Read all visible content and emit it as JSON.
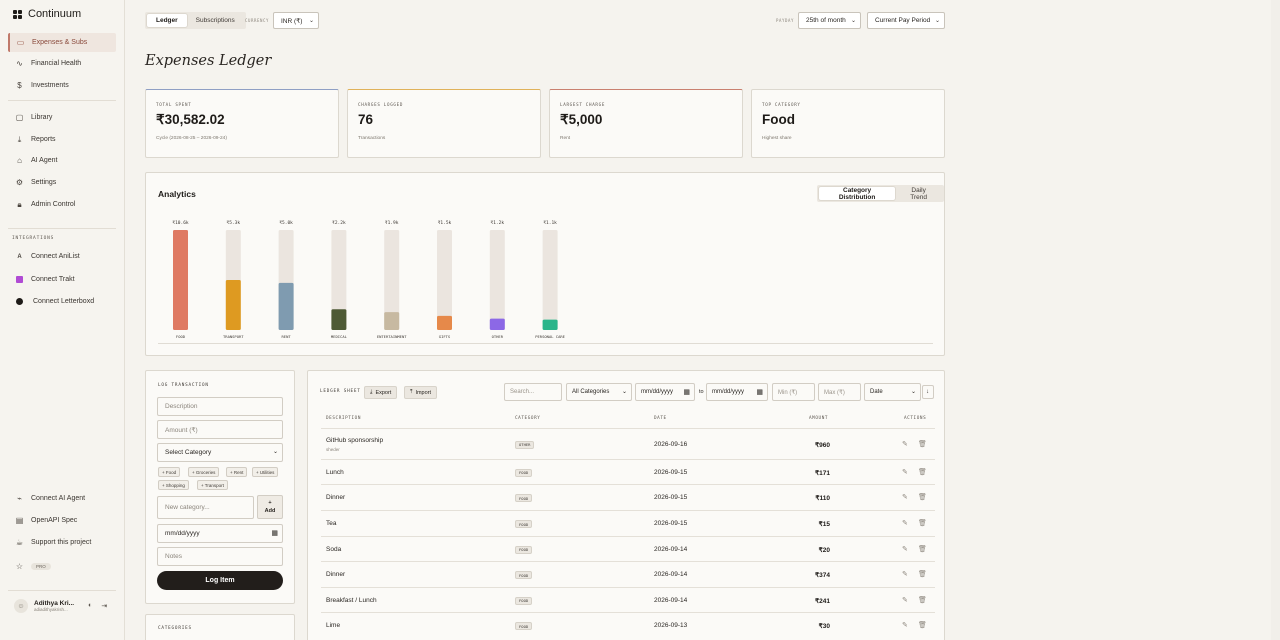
{
  "brand": {
    "name": "Continuum"
  },
  "sidebar": {
    "main": [
      {
        "label": "Expenses & Subs",
        "icon": "wallet-icon",
        "active": true
      },
      {
        "label": "Financial Health",
        "icon": "pulse-icon"
      },
      {
        "label": "Investments",
        "icon": "dollar-icon"
      }
    ],
    "secondary": [
      {
        "label": "Library",
        "icon": "video-icon"
      },
      {
        "label": "Reports",
        "icon": "download-icon"
      },
      {
        "label": "AI Agent",
        "icon": "robot-icon"
      },
      {
        "label": "Settings",
        "icon": "gear-icon"
      },
      {
        "label": "Admin Control",
        "icon": "lock-icon"
      }
    ],
    "integrations_heading": "INTEGRATIONS",
    "integrations": [
      {
        "label": "Connect AniList",
        "icon": "anilist-icon"
      },
      {
        "label": "Connect Trakt",
        "icon": "trakt-icon"
      },
      {
        "label": "Connect Letterboxd",
        "icon": "letterboxd-icon"
      }
    ],
    "footer": [
      {
        "label": "Connect AI Agent",
        "icon": "plug-icon"
      },
      {
        "label": "OpenAPI Spec",
        "icon": "document-icon"
      },
      {
        "label": "Support this project",
        "icon": "coffee-icon"
      }
    ],
    "pro_badge": "PRO",
    "user": {
      "name": "Adithya Kri...",
      "email": "adiadithyakrish..."
    }
  },
  "toolbar": {
    "tabs": [
      "Ledger",
      "Subscriptions"
    ],
    "active_tab": "Ledger",
    "currency_label": "CURRENCY",
    "currency_value": "INR (₹)",
    "payday_label": "PAYDAY",
    "payday_value": "25th of month",
    "period_value": "Current Pay Period"
  },
  "page": {
    "title": "Expenses Ledger"
  },
  "stats": [
    {
      "label": "TOTAL SPENT",
      "value": "₹30,582.02",
      "sub": "Cycle (2026-08-25 – 2026-09-24)",
      "accent": "#8f9fc4"
    },
    {
      "label": "CHARGES LOGGED",
      "value": "76",
      "sub": "Transactions",
      "accent": "#e0b25a"
    },
    {
      "label": "LARGEST CHARGE",
      "value": "₹5,000",
      "sub": "Rent",
      "accent": "#c9806f"
    },
    {
      "label": "TOP CATEGORY",
      "value": "Food",
      "sub": "Highest share",
      "accent": "#dcd8cf"
    }
  ],
  "analytics": {
    "title": "Analytics",
    "tabs": [
      "Category Distribution",
      "Daily Trend"
    ],
    "active_tab": "Category Distribution"
  },
  "chart_data": {
    "type": "bar",
    "categories": [
      "FOOD",
      "TRANSPORT",
      "RENT",
      "MEDICAL",
      "ENTERTAINMENT",
      "GIFTS",
      "OTHER",
      "PERSONAL CARE"
    ],
    "value_labels": [
      "₹10.6k",
      "₹5.3k",
      "₹5.0k",
      "₹2.2k",
      "₹1.9k",
      "₹1.5k",
      "₹1.2k",
      "₹1.1k"
    ],
    "values": [
      10600,
      5300,
      5000,
      2200,
      1900,
      1500,
      1200,
      1100
    ],
    "ylim": [
      0,
      10600
    ],
    "colors": [
      "#df7a63",
      "#de9a21",
      "#7f9bb0",
      "#4e5a35",
      "#c7b9a1",
      "#e6894a",
      "#8c68e6",
      "#2ab58b"
    ],
    "track_color": "#ebe5df",
    "grid": false
  },
  "log": {
    "heading": "LOG TRANSACTION",
    "description_ph": "Description",
    "amount_ph": "Amount (₹)",
    "category_value": "Select Category",
    "chips": [
      "+ Food",
      "+ Groceries",
      "+ Rent",
      "+ Utilities",
      "+ Shopping",
      "+ Transport"
    ],
    "new_category_ph": "New category...",
    "add_plus": "+",
    "add_label": "Add",
    "date_value": "mm/dd/yyyy",
    "notes_ph": "Notes",
    "submit": "Log Item",
    "categories_heading": "CATEGORIES"
  },
  "ledger": {
    "heading": "LEDGER SHEET",
    "export": "Export",
    "import": "Import",
    "search_ph": "Search...",
    "category_filter": "All Categories",
    "date_from": "mm/dd/yyyy",
    "to_label": "to",
    "date_to": "mm/dd/yyyy",
    "min_ph": "Min (₹)",
    "max_ph": "Max (₹)",
    "sort": "Date",
    "sort_dir": "↓",
    "columns": [
      "DESCRIPTION",
      "CATEGORY",
      "DATE",
      "AMOUNT",
      "ACTIONS"
    ],
    "rows": [
      {
        "description": "GitHub sponsorship",
        "note": "sheder",
        "category": "OTHER",
        "date": "2026-09-16",
        "amount": "₹960"
      },
      {
        "description": "Lunch",
        "category": "FOOD",
        "date": "2026-09-15",
        "amount": "₹171"
      },
      {
        "description": "Dinner",
        "category": "FOOD",
        "date": "2026-09-15",
        "amount": "₹110"
      },
      {
        "description": "Tea",
        "category": "FOOD",
        "date": "2026-09-15",
        "amount": "₹15"
      },
      {
        "description": "Soda",
        "category": "FOOD",
        "date": "2026-09-14",
        "amount": "₹20"
      },
      {
        "description": "Dinner",
        "category": "FOOD",
        "date": "2026-09-14",
        "amount": "₹374"
      },
      {
        "description": "Breakfast / Lunch",
        "category": "FOOD",
        "date": "2026-09-14",
        "amount": "₹241"
      },
      {
        "description": "Lime",
        "category": "FOOD",
        "date": "2026-09-13",
        "amount": "₹30"
      }
    ]
  }
}
